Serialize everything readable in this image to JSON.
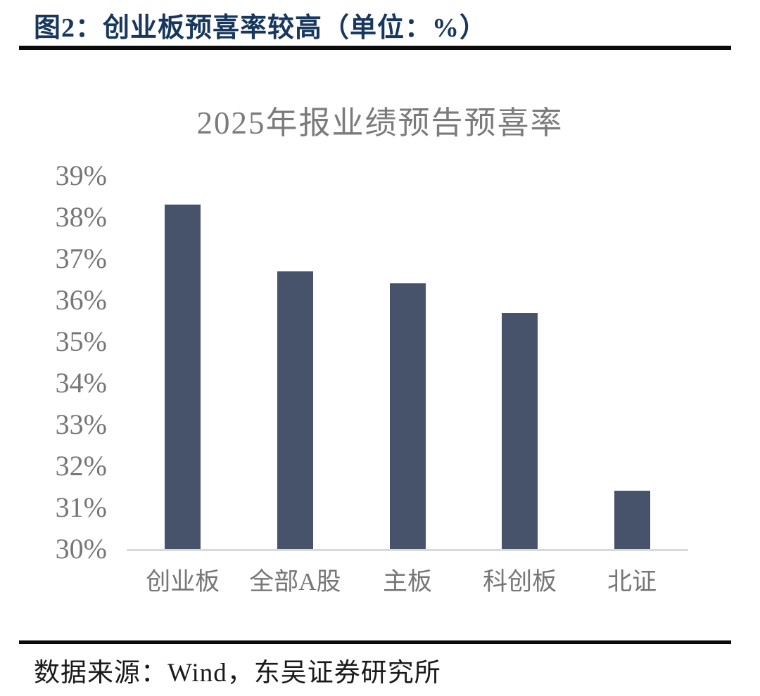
{
  "figure_header": {
    "title": "图2：创业板预喜率较高（单位：%）"
  },
  "chart_data": {
    "type": "bar",
    "title": "2025年报业绩预告预喜率",
    "categories": [
      "创业板",
      "全部A股",
      "主板",
      "科创板",
      "北证"
    ],
    "values": [
      38.3,
      36.7,
      36.4,
      35.7,
      31.4
    ],
    "unit": "%",
    "ylim": [
      30,
      39
    ],
    "yticks": [
      "39%",
      "38%",
      "37%",
      "36%",
      "35%",
      "34%",
      "33%",
      "32%",
      "31%",
      "30%"
    ],
    "grid": false,
    "legend": "none",
    "bar_color": "#46536b",
    "axis_line_color": "#d9d9d9",
    "label_color": "#767676",
    "title_color": "#7b7b7b",
    "header_color": "#17375e"
  },
  "footer": {
    "source": "数据来源：Wind，东吴证券研究所"
  }
}
